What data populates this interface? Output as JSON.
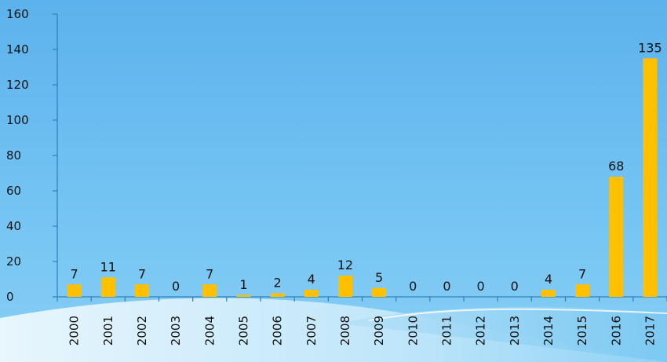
{
  "chart_data": {
    "type": "bar",
    "categories": [
      "2000",
      "2001",
      "2002",
      "2003",
      "2004",
      "2005",
      "2006",
      "2007",
      "2008",
      "2009",
      "2010",
      "2011",
      "2012",
      "2013",
      "2014",
      "2015",
      "2016",
      "2017"
    ],
    "values": [
      7,
      11,
      7,
      0,
      7,
      1,
      2,
      4,
      12,
      5,
      0,
      0,
      0,
      0,
      4,
      7,
      68,
      135
    ],
    "title": "",
    "xlabel": "",
    "ylabel": "",
    "ylim": [
      0,
      160
    ],
    "yticks": [
      0,
      20,
      40,
      60,
      80,
      100,
      120,
      140,
      160
    ],
    "grid": false,
    "legend": "none",
    "bar_color": "#ffc000",
    "axis_color": "#2c7fb8"
  }
}
